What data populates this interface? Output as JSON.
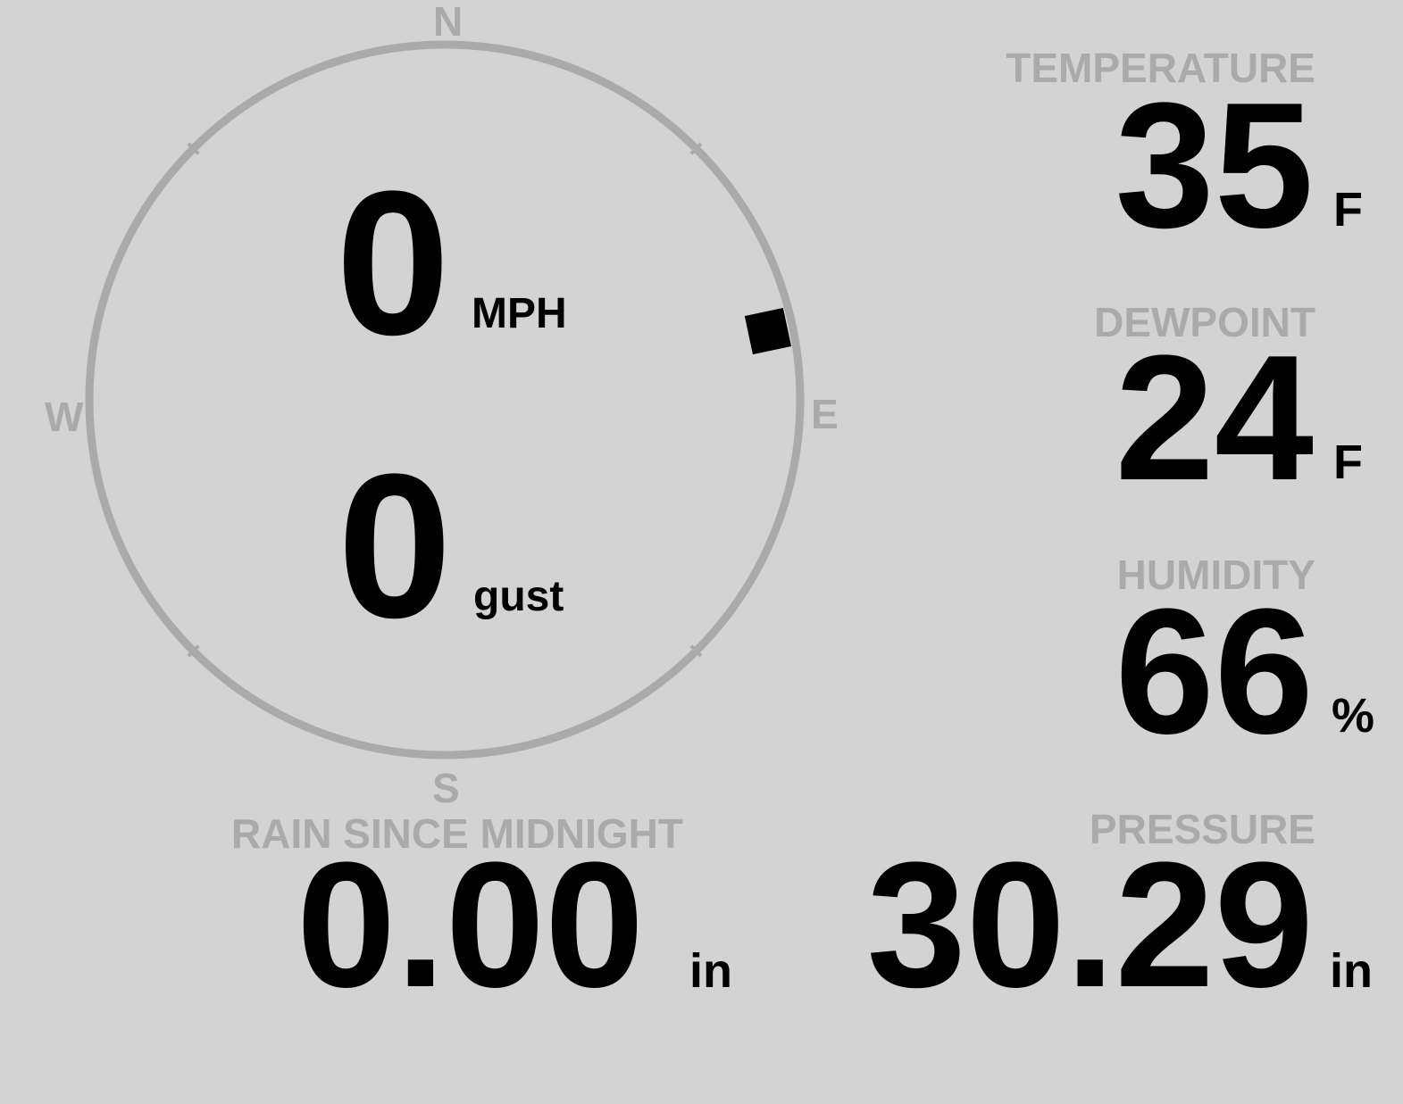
{
  "colors": {
    "background": "#d3d3d3",
    "label": "#aaaaaa",
    "value": "#000000",
    "ring": "#aaaaaa"
  },
  "wind": {
    "compass": {
      "n": "N",
      "e": "E",
      "s": "S",
      "w": "W"
    },
    "direction_deg": 78,
    "speed": "0",
    "speed_unit": "MPH",
    "gust": "0",
    "gust_unit": "gust"
  },
  "temperature": {
    "label": "TEMPERATURE",
    "value": "35",
    "unit": "F"
  },
  "dewpoint": {
    "label": "DEWPOINT",
    "value": "24",
    "unit": "F"
  },
  "humidity": {
    "label": "HUMIDITY",
    "value": "66",
    "unit": "%"
  },
  "pressure": {
    "label": "PRESSURE",
    "value": "30.29",
    "unit": "in"
  },
  "rain": {
    "label": "RAIN SINCE MIDNIGHT",
    "value": "0.00",
    "unit": "in"
  }
}
